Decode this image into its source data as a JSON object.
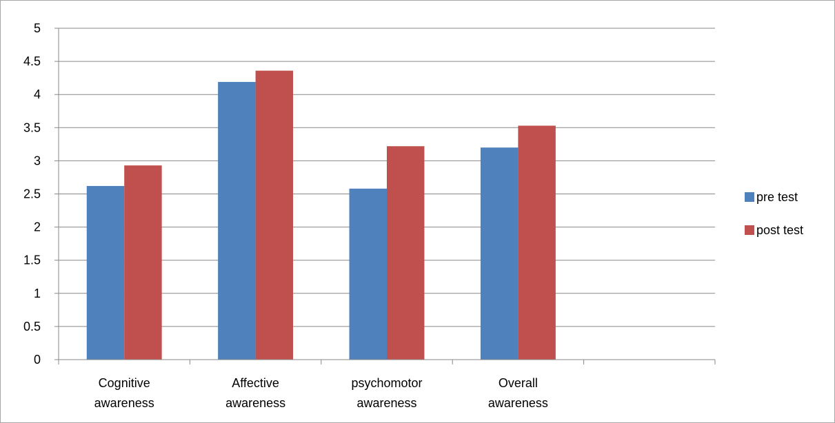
{
  "chart_data": {
    "type": "bar",
    "title": "",
    "xlabel": "",
    "ylabel": "",
    "categories": [
      [
        "Cognitive",
        "awareness"
      ],
      [
        "Affective",
        "awareness"
      ],
      [
        "psychomotor",
        "awareness"
      ],
      [
        "Overall",
        "awareness"
      ],
      [
        "",
        ""
      ]
    ],
    "series": [
      {
        "name": "pre test",
        "color": "#4F81BD",
        "values": [
          2.62,
          4.19,
          2.58,
          3.2,
          null
        ]
      },
      {
        "name": "post test",
        "color": "#C0504D",
        "values": [
          2.93,
          4.36,
          3.22,
          3.53,
          null
        ]
      }
    ],
    "ylim": [
      0,
      5
    ],
    "yticks": [
      "0",
      "0.5",
      "1",
      "1.5",
      "2",
      "2.5",
      "3",
      "3.5",
      "4",
      "4.5",
      "5"
    ],
    "grid": true,
    "legend_position": "right"
  }
}
